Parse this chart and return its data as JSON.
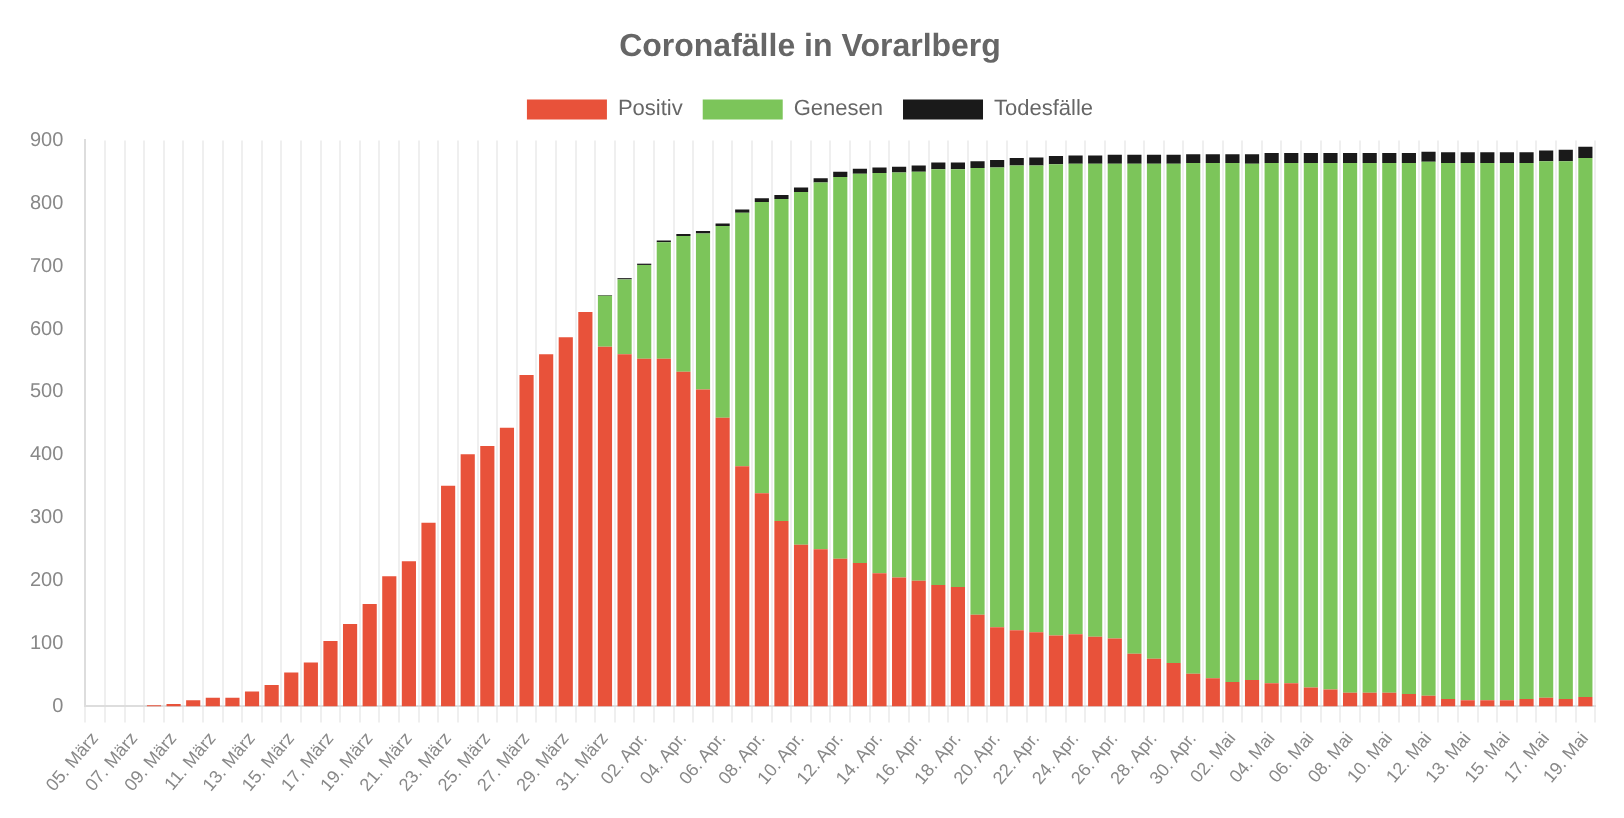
{
  "chart_data": {
    "type": "bar",
    "title": "Coronafälle in Vorarlberg",
    "stacked": true,
    "legend": "top",
    "grid": "x",
    "categories": [
      "05. März",
      null,
      "07. März",
      null,
      "09. März",
      null,
      "11. März",
      null,
      "13. März",
      null,
      "15. März",
      null,
      "17. März",
      null,
      "19. März",
      null,
      "21. März",
      null,
      "23. März",
      null,
      "25. März",
      null,
      "27. März",
      null,
      "29. März",
      null,
      "31. März",
      null,
      "02. Apr.",
      null,
      "04. Apr.",
      null,
      "06. Apr.",
      null,
      "08. Apr.",
      null,
      "10. Apr.",
      null,
      "12. Apr.",
      null,
      "14. Apr.",
      null,
      "16. Apr.",
      null,
      "18. Apr.",
      null,
      "20. Apr.",
      null,
      "22. Apr.",
      null,
      "24. Apr.",
      null,
      "26. Apr.",
      null,
      "28. Apr.",
      null,
      "30. Apr.",
      null,
      "02. Mai",
      null,
      "04. Mai",
      null,
      "06. Mai",
      null,
      "08. Mai",
      null,
      "10. Mai",
      null,
      "12. Mai",
      null,
      "13. Mai",
      null,
      "15. Mai",
      null,
      "17. Mai",
      null,
      "19. Mai"
    ],
    "ylim": [
      0,
      900
    ],
    "yticks": [
      0,
      100,
      200,
      300,
      400,
      500,
      600,
      700,
      800,
      900
    ],
    "series": [
      {
        "name": "Positiv",
        "color": "#e8523a",
        "values": [
          null,
          null,
          null,
          2,
          4,
          10,
          14,
          14,
          24,
          34,
          54,
          70,
          104,
          131,
          163,
          207,
          231,
          292,
          351,
          401,
          414,
          443,
          527,
          560,
          587,
          627,
          572,
          560,
          553,
          553,
          532,
          504,
          459,
          382,
          339,
          295,
          257,
          250,
          235,
          228,
          212,
          205,
          200,
          193,
          190,
          146,
          126,
          121,
          118,
          113,
          115,
          111,
          108,
          84,
          76,
          69,
          52,
          45,
          39,
          42,
          37,
          37,
          30,
          27,
          22,
          22,
          22,
          20,
          17,
          12,
          10,
          10,
          10,
          12,
          14,
          12,
          15
        ]
      },
      {
        "name": "Genesen",
        "color": "#7cc55a",
        "values": [
          0,
          0,
          0,
          0,
          0,
          0,
          0,
          0,
          0,
          0,
          0,
          0,
          0,
          0,
          0,
          0,
          0,
          0,
          0,
          0,
          0,
          0,
          0,
          0,
          0,
          0,
          81,
          119,
          149,
          185,
          216,
          248,
          305,
          403,
          463,
          512,
          561,
          583,
          607,
          619,
          636,
          644,
          650,
          661,
          664,
          710,
          731,
          739,
          742,
          749,
          748,
          752,
          755,
          779,
          787,
          794,
          812,
          819,
          825,
          821,
          827,
          827,
          834,
          837,
          842,
          842,
          842,
          844,
          849,
          852,
          854,
          854,
          854,
          852,
          853,
          855,
          857
        ]
      },
      {
        "name": "Todesfälle",
        "color": "#1a1a1a",
        "values": [
          0,
          0,
          0,
          0,
          0,
          0,
          0,
          0,
          0,
          0,
          0,
          0,
          0,
          0,
          0,
          0,
          0,
          0,
          0,
          0,
          0,
          0,
          0,
          0,
          0,
          0,
          1,
          2,
          2,
          3,
          3,
          4,
          4,
          5,
          6,
          6,
          7,
          7,
          8,
          8,
          9,
          9,
          10,
          11,
          11,
          11,
          12,
          12,
          13,
          13,
          13,
          13,
          14,
          14,
          14,
          14,
          14,
          14,
          14,
          15,
          16,
          16,
          16,
          16,
          16,
          16,
          16,
          16,
          16,
          17,
          17,
          17,
          17,
          17,
          17,
          18,
          18
        ]
      }
    ]
  }
}
